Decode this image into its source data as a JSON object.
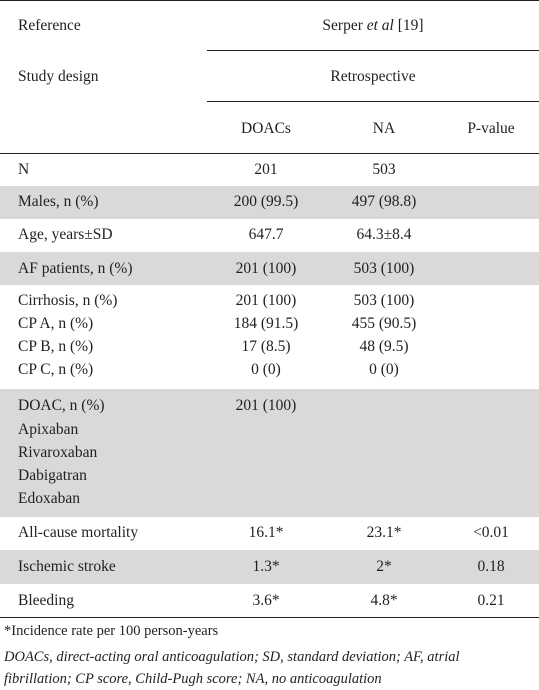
{
  "header": {
    "reference_label": "Reference",
    "reference_value": "Serper et al [19]",
    "reference_author": "Serper",
    "reference_etal": "et al",
    "reference_cite": "[19]",
    "design_label": "Study design",
    "design_value": "Retrospective",
    "col_doacs": "DOACs",
    "col_na": "NA",
    "col_pvalue": "P-value"
  },
  "rows": [
    {
      "label": "N",
      "doacs": "201",
      "na": "503",
      "p": ""
    },
    {
      "label": "Males, n (%)",
      "doacs": "200 (99.5)",
      "na": "497 (98.8)",
      "p": ""
    },
    {
      "label": "Age, years±SD",
      "doacs": "647.7",
      "na": "64.3±8.4",
      "p": ""
    },
    {
      "label": "AF patients, n (%)",
      "doacs": "201 (100)",
      "na": "503 (100)",
      "p": ""
    },
    {
      "label": "Cirrhosis, n (%)",
      "doacs": "201 (100)",
      "na": "503 (100)",
      "p": ""
    },
    {
      "label": "CP A, n (%)",
      "doacs": "184 (91.5)",
      "na": "455 (90.5)",
      "p": ""
    },
    {
      "label": "CP B, n (%)",
      "doacs": "17 (8.5)",
      "na": "48 (9.5)",
      "p": ""
    },
    {
      "label": "CP C, n (%)",
      "doacs": "0 (0)",
      "na": "0 (0)",
      "p": ""
    },
    {
      "label": "DOAC, n (%)",
      "doacs": "201 (100)",
      "na": "",
      "p": ""
    },
    {
      "label": "Apixaban",
      "doacs": "",
      "na": "",
      "p": ""
    },
    {
      "label": "Rivaroxaban",
      "doacs": "",
      "na": "",
      "p": ""
    },
    {
      "label": "Dabigatran",
      "doacs": "",
      "na": "",
      "p": ""
    },
    {
      "label": "Edoxaban",
      "doacs": "",
      "na": "",
      "p": ""
    },
    {
      "label": "All-cause mortality",
      "doacs": "16.1*",
      "na": "23.1*",
      "p": "<0.01"
    },
    {
      "label": "Ischemic stroke",
      "doacs": "1.3*",
      "na": "2*",
      "p": "0.18"
    },
    {
      "label": "Bleeding",
      "doacs": "3.6*",
      "na": "4.8*",
      "p": "0.21"
    }
  ],
  "footnote_incidence": "*Incidence rate per 100 person-years",
  "footnote_abbrev_line1": "DOACs, direct-acting oral anticoagulation; SD, standard deviation; AF, atrial",
  "footnote_abbrev_line2": "fibrillation; CP score, Child-Pugh score; NA, no anticoagulation"
}
